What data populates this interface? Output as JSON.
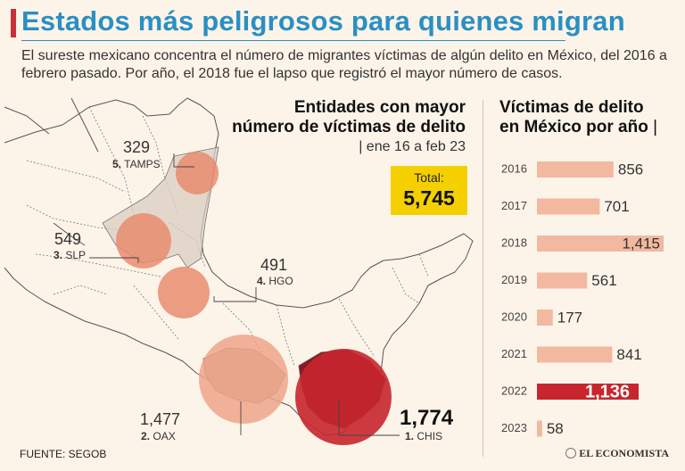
{
  "header": {
    "title": "Estados más peligrosos para quienes migran",
    "subtitle": "El sureste mexicano concentra el número de migrantes víctimas de algún delito en México, del 2016 a febrero pasado. Por año, el 2018 fue el lapso que registró el mayor número de casos."
  },
  "map_panel": {
    "heading_line1": "Entidades con mayor",
    "heading_line2": "número de víctimas de delito",
    "heading_sub": "| ene 16 a feb 23",
    "total_label": "Total:",
    "total_value": "5,745"
  },
  "bar_panel": {
    "heading_line1": "Víctimas de delito",
    "heading_line2": "en México por año",
    "heading_sep": "|"
  },
  "footer": {
    "source": "FUENTE:  SEGOB",
    "brand": "EL ECONOMISTA"
  },
  "colors": {
    "title": "#2a8fc4",
    "bar": "#f2b8a0",
    "bar_highlight": "#c7262e",
    "bubble": "#e8896a",
    "bubble_top": "#c7262e",
    "total_box": "#f5d000"
  },
  "chart_data": [
    {
      "type": "bar",
      "title": "Víctimas de delito en México por año",
      "orientation": "horizontal",
      "categories": [
        "2016",
        "2017",
        "2018",
        "2019",
        "2020",
        "2021",
        "2022",
        "2023"
      ],
      "values": [
        856,
        701,
        1415,
        561,
        177,
        841,
        1136,
        58
      ],
      "value_labels": [
        "856",
        "701",
        "1,415",
        "561",
        "177",
        "841",
        "1,136",
        "58"
      ],
      "highlight": "2022",
      "xlim": [
        0,
        1415
      ]
    },
    {
      "type": "bubble-map",
      "title": "Entidades con mayor número de víctimas de delito",
      "states": [
        {
          "rank": "1.",
          "name": "CHIS",
          "value": 1774,
          "value_label": "1,774"
        },
        {
          "rank": "2.",
          "name": "OAX",
          "value": 1477,
          "value_label": "1,477"
        },
        {
          "rank": "3.",
          "name": "SLP",
          "value": 549,
          "value_label": "549"
        },
        {
          "rank": "4.",
          "name": "HGO",
          "value": 491,
          "value_label": "491"
        },
        {
          "rank": "5.",
          "name": "TAMPS",
          "value": 329,
          "value_label": "329"
        }
      ]
    }
  ]
}
